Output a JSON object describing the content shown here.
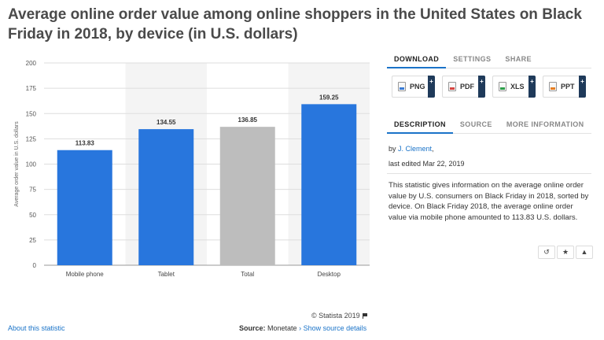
{
  "title": "Average online order value among online shoppers in the United States on Black Friday in 2018, by device (in U.S. dollars)",
  "chart_data": {
    "type": "bar",
    "categories": [
      "Mobile phone",
      "Tablet",
      "Total",
      "Desktop"
    ],
    "values": [
      113.83,
      134.55,
      136.85,
      159.25
    ],
    "value_labels": [
      "113.83",
      "134.55",
      "136.85",
      "159.25"
    ],
    "colors": [
      "#2876dd",
      "#2876dd",
      "#bdbdbd",
      "#2876dd"
    ],
    "highlight_bands": [
      1,
      3
    ],
    "ylabel": "Average order value in U.S. dollars",
    "ylim": [
      0,
      200
    ],
    "yticks": [
      0,
      25,
      50,
      75,
      100,
      125,
      150,
      175,
      200
    ],
    "grid": true
  },
  "footer": {
    "copyright": "© Statista 2019",
    "about_link": "About this statistic",
    "source_label": "Source:",
    "source_value": "Monetate",
    "source_link": "› Show source details"
  },
  "panel": {
    "tabs": [
      "DOWNLOAD",
      "SETTINGS",
      "SHARE"
    ],
    "downloads": [
      {
        "label": "PNG",
        "icon": "png-file-icon"
      },
      {
        "label": "PDF",
        "icon": "pdf-file-icon"
      },
      {
        "label": "XLS",
        "icon": "xls-file-icon"
      },
      {
        "label": "PPT",
        "icon": "ppt-file-icon"
      }
    ],
    "plus": "+",
    "info_tabs": [
      "DESCRIPTION",
      "SOURCE",
      "MORE INFORMATION"
    ],
    "by_prefix": "by",
    "author": "J. Clement",
    "by_suffix": ",",
    "edited": "last edited Mar 22, 2019",
    "description": "This statistic gives information on the average online order value by U.S. consumers on Black Friday in 2018, sorted by device. On Black Friday 2018, the average online order value via mobile phone amounted to 113.83 U.S. dollars.",
    "icons": [
      "history-icon",
      "star-icon",
      "bell-icon"
    ]
  }
}
